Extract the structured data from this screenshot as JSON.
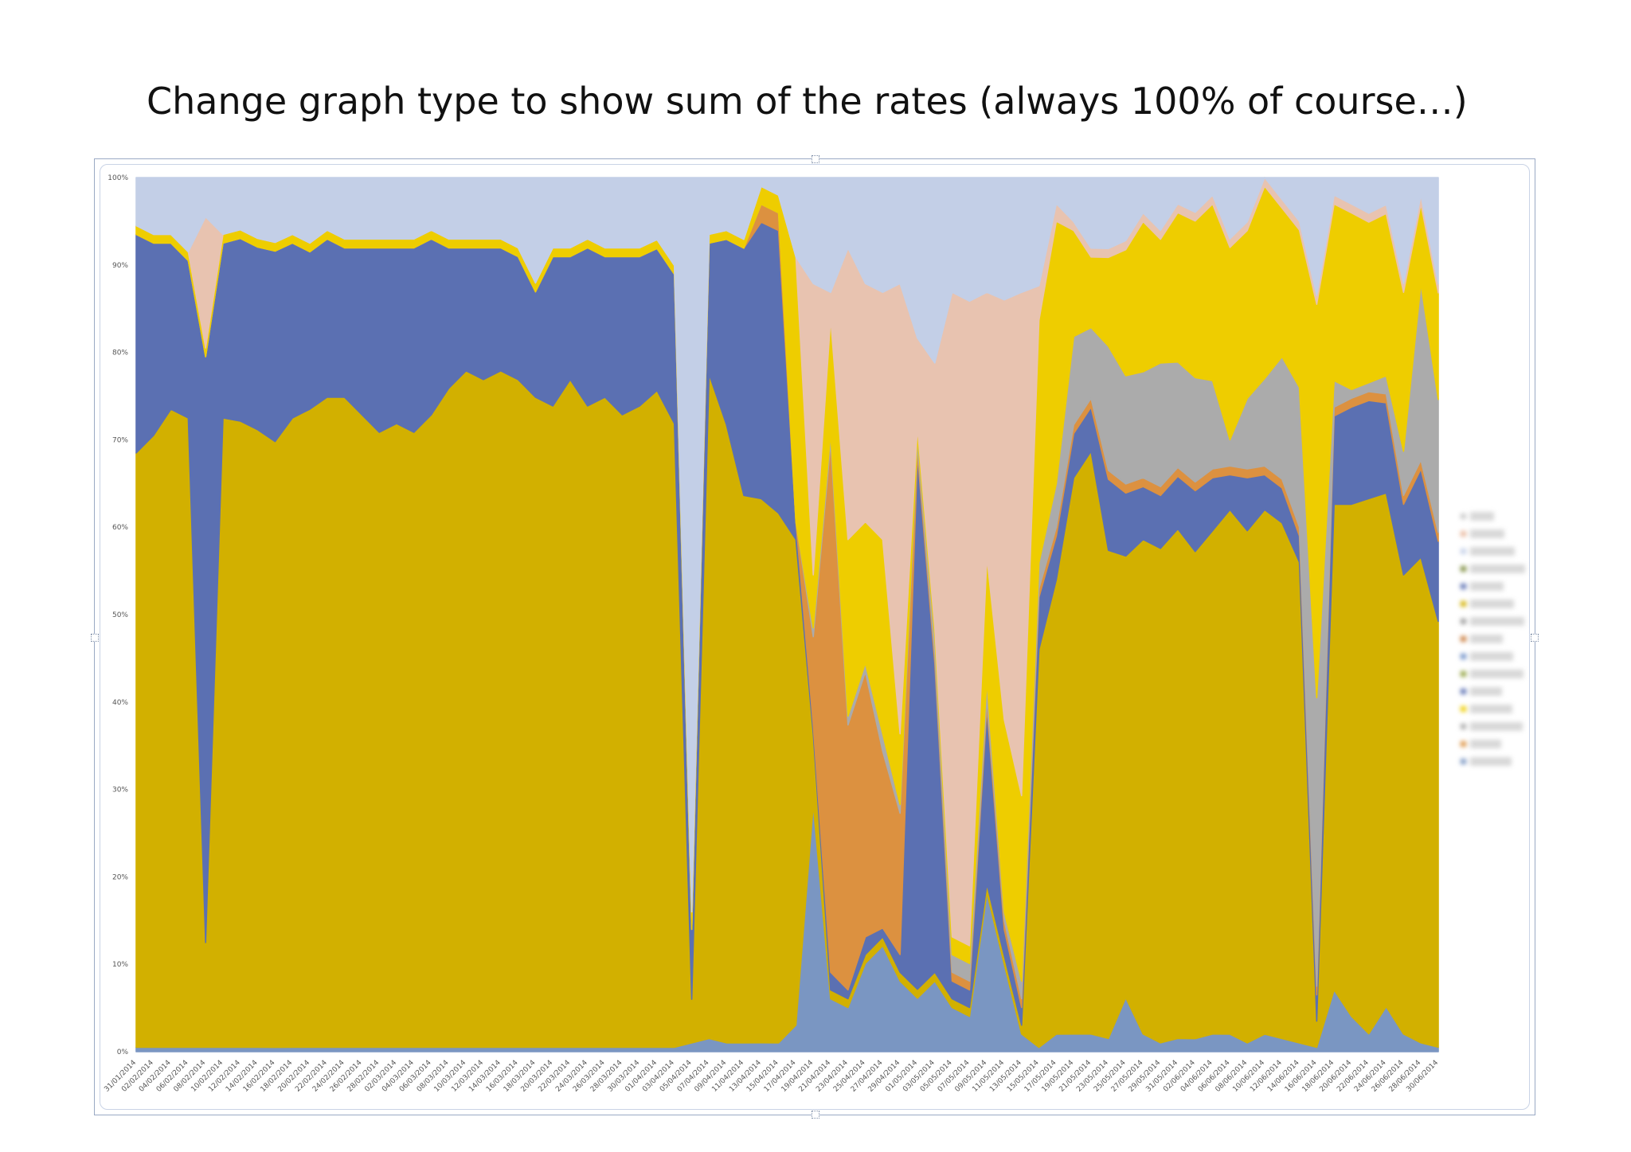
{
  "slide": {
    "title": "Change graph type to show sum of the rates (always 100% of course…)"
  },
  "chart_data": {
    "type": "area",
    "stacking": "percent",
    "title": "",
    "xlabel": "",
    "ylabel": "",
    "ylim": [
      0,
      100
    ],
    "y_ticks": [
      "0%",
      "10%",
      "20%",
      "30%",
      "40%",
      "50%",
      "60%",
      "70%",
      "80%",
      "90%",
      "100%"
    ],
    "x_tick_labels": [
      "31/01/2014",
      "02/02/2014",
      "04/02/2014",
      "06/02/2014",
      "08/02/2014",
      "10/02/2014",
      "12/02/2014",
      "14/02/2014",
      "16/02/2014",
      "18/02/2014",
      "20/02/2014",
      "22/02/2014",
      "24/02/2014",
      "26/02/2014",
      "28/02/2014",
      "02/03/2014",
      "04/03/2014",
      "06/03/2014",
      "08/03/2014",
      "10/03/2014",
      "12/03/2014",
      "14/03/2014",
      "16/03/2014",
      "18/03/2014",
      "20/03/2014",
      "22/03/2014",
      "24/03/2014",
      "26/03/2014",
      "28/03/2014",
      "30/03/2014",
      "01/04/2014",
      "03/04/2014",
      "05/04/2014",
      "07/04/2014",
      "09/04/2014",
      "11/04/2014",
      "13/04/2014",
      "15/04/2014",
      "17/04/2014",
      "19/04/2014",
      "21/04/2014",
      "23/04/2014",
      "25/04/2014",
      "27/04/2014",
      "29/04/2014",
      "01/05/2014",
      "03/05/2014",
      "05/05/2014",
      "07/05/2014",
      "09/05/2014",
      "11/05/2014",
      "13/05/2014",
      "15/05/2014",
      "17/05/2014",
      "19/05/2014",
      "21/05/2014",
      "23/05/2014",
      "25/05/2014",
      "27/05/2014",
      "29/05/2014",
      "31/05/2014",
      "02/06/2014",
      "04/06/2014",
      "06/06/2014",
      "08/06/2014",
      "10/06/2014",
      "12/06/2014",
      "14/06/2014",
      "16/06/2014",
      "18/06/2014",
      "20/06/2014",
      "22/06/2014",
      "24/06/2014",
      "26/06/2014",
      "28/06/2014",
      "30/06/2014"
    ],
    "x_start": "2014-01-31",
    "x_end": "2014-06-30",
    "legend": {
      "position": "right",
      "entries_readable": false
    },
    "grid": false,
    "series": [
      {
        "color": "#7a96c2",
        "values": [
          0.5,
          0.5,
          0.5,
          0.5,
          0.5,
          0.5,
          0.5,
          0.5,
          0.5,
          0.5,
          0.5,
          0.5,
          0.5,
          0.5,
          0.5,
          0.5,
          0.5,
          0.5,
          0.5,
          0.5,
          0.5,
          0.5,
          0.5,
          0.5,
          0.5,
          0.5,
          0.5,
          0.5,
          0.5,
          0.5,
          0.5,
          0.5,
          1,
          1.5,
          1,
          1,
          1,
          1,
          3,
          28,
          6,
          5,
          10,
          12,
          8,
          6,
          8,
          5,
          4,
          18,
          10,
          2,
          0.5,
          2,
          2,
          2,
          1.5,
          6,
          2,
          1,
          1.5,
          1.5,
          2,
          2,
          1,
          2,
          1.5,
          1,
          0.5,
          7,
          4,
          2,
          5,
          2,
          1,
          0.5
        ]
      },
      {
        "color": "#d2b000",
        "values": [
          68,
          70,
          73,
          72,
          12,
          72,
          72,
          71,
          70,
          72,
          73,
          74,
          74,
          72,
          70,
          71,
          70,
          72,
          75,
          77,
          76,
          77,
          76,
          74,
          73,
          76,
          73,
          74,
          72,
          73,
          74,
          71,
          5,
          76,
          70,
          62,
          61,
          60,
          55,
          8,
          1,
          1,
          1,
          1,
          1,
          1,
          1,
          1,
          1,
          1,
          1,
          1,
          46,
          52,
          63,
          66,
          55,
          49,
          56,
          56,
          58,
          56,
          57,
          60,
          58,
          60,
          59,
          55,
          3,
          55,
          58,
          60,
          57,
          52,
          55,
          48
        ]
      },
      {
        "color": "#5b70b2",
        "values": [
          25,
          22,
          19,
          18,
          67,
          20,
          21,
          21,
          22,
          20,
          18,
          18,
          17,
          19,
          21,
          20,
          21,
          20,
          16,
          14,
          15,
          14,
          14,
          12,
          17,
          14,
          18,
          16,
          18,
          17,
          16,
          17,
          8,
          15,
          21,
          28,
          31,
          32,
          2,
          1,
          2,
          1,
          2,
          1,
          2,
          60,
          35,
          2,
          2,
          20,
          3,
          2,
          6,
          5,
          5,
          5,
          8,
          7,
          6,
          6,
          6,
          7,
          6,
          4,
          6,
          4,
          4,
          3,
          3,
          10,
          11,
          11,
          10,
          8,
          10,
          9
        ]
      },
      {
        "color": "#dc9140",
        "values": [
          0,
          0,
          0,
          0,
          0,
          0,
          0,
          0,
          0,
          0,
          0,
          0,
          0,
          0,
          0,
          0,
          0,
          0,
          0,
          0,
          0,
          0,
          0,
          0,
          0,
          0,
          0,
          0,
          0,
          0,
          0,
          0,
          0,
          0,
          0,
          0,
          2,
          2,
          0,
          10,
          60,
          30,
          30,
          20,
          16,
          1,
          1,
          1,
          1,
          1,
          1,
          1,
          1,
          1,
          1,
          1,
          1,
          1,
          1,
          1,
          1,
          1,
          1,
          1,
          1,
          1,
          1,
          1,
          1,
          1,
          1,
          1,
          1,
          1,
          1,
          1
        ]
      },
      {
        "color": "#ababab",
        "values": [
          0,
          0,
          0,
          0,
          0,
          0,
          0,
          0,
          0,
          0,
          0,
          0,
          0,
          0,
          0,
          0,
          0,
          0,
          0,
          0,
          0,
          0,
          0,
          0,
          0,
          0,
          0,
          0,
          0,
          0,
          0,
          0,
          0,
          0,
          0,
          0,
          0,
          0,
          0,
          1,
          1,
          1,
          1,
          2,
          1,
          1,
          2,
          2,
          2,
          2,
          1,
          2,
          3,
          5,
          10,
          8,
          14,
          12,
          12,
          14,
          12,
          12,
          10,
          3,
          8,
          10,
          14,
          16,
          33,
          3,
          1,
          1,
          2,
          5,
          20,
          15
        ]
      },
      {
        "color": "#eecd00",
        "values": [
          1,
          1,
          1,
          1,
          1,
          1,
          1,
          1,
          1,
          1,
          1,
          1,
          1,
          1,
          1,
          1,
          1,
          1,
          1,
          1,
          1,
          1,
          1,
          1,
          1,
          1,
          1,
          1,
          1,
          1,
          1,
          1,
          2,
          1,
          1,
          1,
          2,
          2,
          30,
          6,
          13,
          20,
          16,
          22,
          8,
          1,
          1,
          2,
          2,
          14,
          22,
          21,
          28,
          30,
          12,
          8,
          10,
          14,
          17,
          14,
          17,
          18,
          20,
          22,
          19,
          22,
          17,
          18,
          45,
          20,
          20,
          18,
          18,
          18,
          9,
          12
        ]
      },
      {
        "color": "#e8c3b0",
        "values": [
          0,
          0,
          0,
          0,
          15,
          0,
          0,
          0,
          0,
          0,
          0,
          0,
          0,
          0,
          0,
          0,
          0,
          0,
          0,
          0,
          0,
          0,
          0,
          0,
          0,
          0,
          0,
          0,
          0,
          0,
          0,
          0,
          0,
          0,
          0,
          0,
          0,
          0,
          0,
          33,
          3,
          33,
          27,
          28,
          51,
          10,
          30,
          73,
          73,
          30,
          48,
          57,
          4,
          2,
          1,
          1,
          1,
          1,
          1,
          1,
          1,
          1,
          1,
          1,
          1,
          1,
          1,
          1,
          1,
          1,
          1,
          1,
          1,
          1,
          1,
          1
        ]
      },
      {
        "color": "#c3cfe7",
        "values": [
          5.5,
          6.5,
          6.5,
          8.5,
          4.5,
          6.5,
          6,
          7,
          7.5,
          6.5,
          7.5,
          6,
          7,
          7,
          7,
          7,
          7,
          6,
          7,
          7,
          7,
          7,
          8,
          12,
          8,
          8,
          7,
          8,
          8,
          8,
          7,
          10,
          84,
          6.5,
          6,
          7,
          1,
          2,
          9,
          12,
          13,
          8,
          12,
          13,
          12,
          18,
          21,
          13,
          14,
          13,
          14,
          13,
          12.5,
          3,
          5,
          8,
          8,
          7,
          4,
          6,
          3,
          4,
          2,
          7,
          5,
          0,
          2.5,
          5,
          13.5,
          2,
          3,
          4,
          3,
          12,
          2,
          12
        ]
      }
    ]
  }
}
